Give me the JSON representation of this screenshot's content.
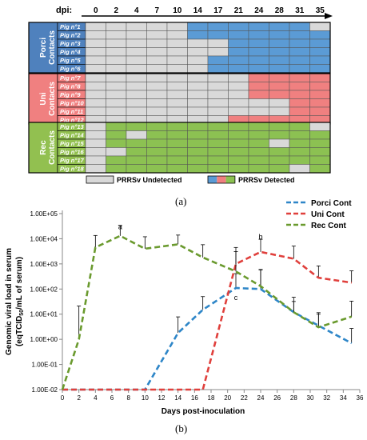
{
  "chart_data": [
    {
      "type": "heatmap",
      "panel_label": "(a)",
      "x_title": "dpi:",
      "columns": [
        "0",
        "2",
        "4",
        "7",
        "10",
        "14",
        "17",
        "21",
        "24",
        "28",
        "31",
        "35"
      ],
      "groups": [
        {
          "label_line1": "Porci",
          "label_line2": "Contacts",
          "label_color": "#4f81bd",
          "detected_color": "#5b9bd5",
          "pigs": [
            "Pig n°1",
            "Pig n°2",
            "Pig n°3",
            "Pig n°4",
            "Pig n°5",
            "Pig n°6"
          ],
          "detected": [
            [
              0,
              0,
              0,
              0,
              0,
              1,
              1,
              1,
              1,
              1,
              1,
              0
            ],
            [
              0,
              0,
              0,
              0,
              0,
              1,
              1,
              1,
              1,
              1,
              1,
              1
            ],
            [
              0,
              0,
              0,
              0,
              0,
              0,
              0,
              1,
              1,
              1,
              1,
              1
            ],
            [
              0,
              0,
              0,
              0,
              0,
              0,
              0,
              1,
              1,
              1,
              1,
              1
            ],
            [
              0,
              0,
              0,
              0,
              0,
              0,
              1,
              1,
              1,
              1,
              1,
              1
            ],
            [
              0,
              0,
              0,
              0,
              0,
              0,
              1,
              1,
              1,
              1,
              1,
              1
            ]
          ]
        },
        {
          "label_line1": "Uni",
          "label_line2": "Contacts",
          "label_color": "#f08080",
          "detected_color": "#f08080",
          "pigs": [
            "Pig n°7",
            "Pig n°8",
            "Pig n°9",
            "Pig n°10",
            "Pig n°11",
            "Pig n°12"
          ],
          "detected": [
            [
              0,
              0,
              0,
              0,
              0,
              0,
              0,
              0,
              1,
              1,
              1,
              1
            ],
            [
              0,
              0,
              0,
              0,
              0,
              0,
              0,
              0,
              1,
              1,
              1,
              1
            ],
            [
              0,
              0,
              0,
              0,
              0,
              0,
              0,
              0,
              1,
              1,
              1,
              1
            ],
            [
              0,
              0,
              0,
              0,
              0,
              0,
              0,
              0,
              0,
              0,
              1,
              1
            ],
            [
              0,
              0,
              0,
              0,
              0,
              0,
              0,
              0,
              0,
              0,
              1,
              1
            ],
            [
              0,
              0,
              0,
              0,
              0,
              0,
              0,
              1,
              1,
              1,
              1,
              1
            ]
          ]
        },
        {
          "label_line1": "Rec",
          "label_line2": "Contacts",
          "label_color": "#92c050",
          "detected_color": "#8cc152",
          "pigs": [
            "Pig n°13",
            "Pig n°14",
            "Pig n°15",
            "Pig n°16",
            "Pig n°17",
            "Pig n°18"
          ],
          "detected": [
            [
              0,
              1,
              1,
              1,
              1,
              1,
              1,
              1,
              1,
              1,
              1,
              0
            ],
            [
              0,
              1,
              0,
              1,
              1,
              1,
              1,
              1,
              1,
              1,
              1,
              1
            ],
            [
              0,
              1,
              1,
              1,
              1,
              1,
              1,
              1,
              1,
              0,
              1,
              1
            ],
            [
              0,
              0,
              1,
              1,
              1,
              1,
              1,
              1,
              1,
              1,
              1,
              1
            ],
            [
              0,
              1,
              1,
              1,
              1,
              1,
              1,
              1,
              1,
              1,
              1,
              1
            ],
            [
              0,
              1,
              1,
              1,
              1,
              1,
              1,
              1,
              1,
              1,
              0,
              1
            ]
          ]
        }
      ],
      "undetected_color": "#d9d9d9",
      "legend": [
        {
          "label": "PRRSv Undetected"
        },
        {
          "label": "PRRSv Detected"
        }
      ]
    },
    {
      "type": "line",
      "panel_label": "(b)",
      "xlabel": "Days post-inoculation",
      "ylabel_line1": "Genomic viral load in serum",
      "ylabel_line2_prefix": "(eqTCID",
      "ylabel_line2_sub": "50",
      "ylabel_line2_suffix": "/mL of serum)",
      "y_scale": "log",
      "xlim": [
        0,
        36
      ],
      "ylim": [
        0.01,
        100000
      ],
      "x_ticks": [
        0,
        2,
        4,
        6,
        8,
        10,
        12,
        14,
        16,
        18,
        20,
        22,
        24,
        26,
        28,
        30,
        32,
        34,
        36
      ],
      "x_tick_labels": [
        "0",
        "2",
        "4",
        "6",
        "8",
        "10",
        "12",
        "14",
        "16",
        "18",
        "20",
        "22",
        "24",
        "26",
        "28",
        "30",
        "32",
        "34",
        "36"
      ],
      "y_tick_labels": [
        "1.00E-02",
        "1.00E-01",
        "1.00E+00",
        "1.00E+01",
        "1.00E+02",
        "1.00E+03",
        "1.00E+04",
        "1.00E+05"
      ],
      "y_tick_values": [
        0.01,
        0.1,
        1,
        10,
        100,
        1000,
        10000,
        100000
      ],
      "legend_position": "top-right",
      "series": [
        {
          "name": "Porci Cont",
          "color": "#2e86c8",
          "x": [
            0,
            2,
            4,
            7,
            10,
            14,
            17,
            21,
            24,
            28,
            31,
            35
          ],
          "y": [
            0.01,
            0.01,
            0.01,
            0.01,
            0.01,
            1.8,
            15,
            110,
            100,
            12,
            3.5,
            0.7
          ],
          "err": [
            0,
            0,
            0,
            0,
            0,
            6,
            35,
            300,
            500,
            35,
            8,
            2
          ]
        },
        {
          "name": "Uni Cont",
          "color": "#e0403c",
          "x": [
            0,
            2,
            4,
            7,
            10,
            14,
            17,
            21,
            24,
            28,
            31,
            35
          ],
          "y": [
            0.01,
            0.01,
            0.01,
            0.01,
            0.01,
            0.01,
            0.01,
            1000,
            3000,
            1600,
            280,
            180
          ],
          "err": [
            0,
            0,
            0,
            0,
            0,
            0,
            0,
            3500,
            6500,
            3500,
            550,
            350
          ]
        },
        {
          "name": "Rec Cont",
          "color": "#6a9a2e",
          "x": [
            0,
            2,
            4,
            7,
            10,
            14,
            17,
            21,
            24,
            28,
            31,
            35
          ],
          "y": [
            0.01,
            1,
            4500,
            13000,
            4000,
            6000,
            1800,
            500,
            130,
            12,
            3,
            8
          ],
          "err": [
            0,
            20,
            9000,
            21000,
            8000,
            8000,
            4000,
            2600,
            450,
            20,
            7,
            25
          ]
        }
      ],
      "annotations": [
        {
          "text": "a",
          "x": 7,
          "y": 30000
        },
        {
          "text": "b",
          "x": 24,
          "y": 12000
        },
        {
          "text": "c",
          "x": 21,
          "y": 45
        }
      ]
    }
  ]
}
